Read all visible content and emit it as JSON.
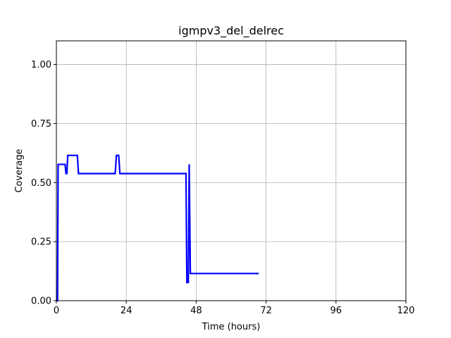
{
  "chart_data": {
    "type": "line",
    "title": "igmpv3_del_delrec",
    "xlabel": "Time (hours)",
    "ylabel": "Coverage",
    "xlim": [
      0,
      120
    ],
    "ylim": [
      0,
      1.1
    ],
    "x_ticks": [
      0,
      24,
      48,
      72,
      96,
      120
    ],
    "x_tick_labels": [
      "0",
      "24",
      "48",
      "72",
      "96",
      "120"
    ],
    "y_ticks": [
      0,
      0.25,
      0.5,
      0.75,
      1.0
    ],
    "y_tick_labels": [
      "0.00",
      "0.25",
      "0.50",
      "0.75",
      "1.00"
    ],
    "grid": true,
    "series": [
      {
        "color": "#0000ff",
        "points": [
          [
            0.0,
            0.0
          ],
          [
            0.4,
            0.0
          ],
          [
            0.6,
            0.577
          ],
          [
            3.0,
            0.577
          ],
          [
            3.3,
            0.538
          ],
          [
            3.6,
            0.538
          ],
          [
            3.9,
            0.615
          ],
          [
            7.2,
            0.615
          ],
          [
            7.6,
            0.538
          ],
          [
            20.2,
            0.538
          ],
          [
            20.6,
            0.615
          ],
          [
            21.4,
            0.615
          ],
          [
            21.8,
            0.538
          ],
          [
            44.5,
            0.538
          ],
          [
            44.8,
            0.077
          ],
          [
            45.3,
            0.077
          ],
          [
            45.6,
            0.577
          ],
          [
            46.0,
            0.115
          ],
          [
            69.5,
            0.115
          ]
        ]
      }
    ]
  }
}
